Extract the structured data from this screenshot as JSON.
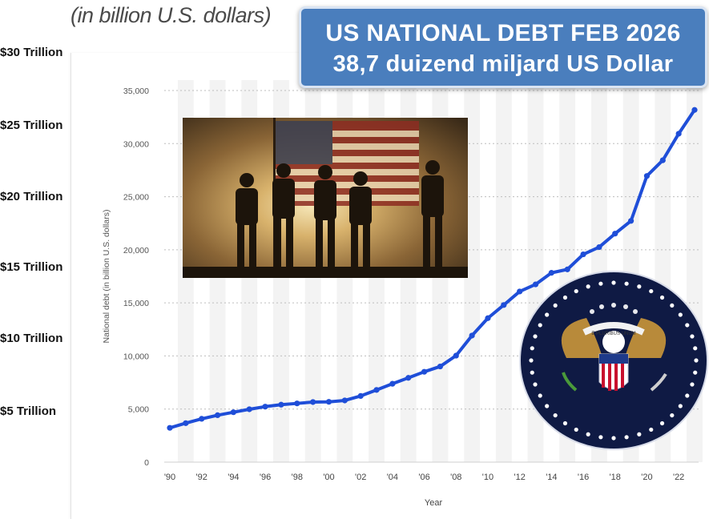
{
  "subtitle": "(in billion U.S. dollars)",
  "banner": {
    "line1": "US NATIONAL DEBT FEB 2026",
    "line2": "38,7 duizend miljard US Dollar"
  },
  "trillion_labels": [
    "$30 Trillion",
    "$25 Trillion",
    "$20 Trillion",
    "$15 Trillion",
    "$10 Trillion",
    "$5 Trillion"
  ],
  "seal_motto": "E PLURIBUS UNUM",
  "colors": {
    "line": "#1f4ed8",
    "banner": "#4a7ebd",
    "grid_band": "#f3f3f3"
  },
  "chart_data": {
    "type": "line",
    "xlabel": "Year",
    "ylabel": "National debt (in billion U.S. dollars)",
    "ylim": [
      0,
      35000
    ],
    "yticks": [
      0,
      5000,
      10000,
      15000,
      20000,
      25000,
      30000,
      35000
    ],
    "ytick_labels": [
      "0",
      "5,000",
      "10,000",
      "15,000",
      "20,000",
      "25,000",
      "30,000",
      "35,000"
    ],
    "xtick_labels": [
      "'90",
      "'92",
      "'94",
      "'96",
      "'98",
      "'00",
      "'02",
      "'04",
      "'06",
      "'08",
      "'10",
      "'12",
      "'14",
      "'16",
      "'18",
      "'20",
      "'22"
    ],
    "grid": "alternating vertical bands",
    "x": [
      1990,
      1991,
      1992,
      1993,
      1994,
      1995,
      1996,
      1997,
      1998,
      1999,
      2000,
      2001,
      2002,
      2003,
      2004,
      2005,
      2006,
      2007,
      2008,
      2009,
      2010,
      2011,
      2012,
      2013,
      2014,
      2015,
      2016,
      2017,
      2018,
      2019,
      2020,
      2021,
      2022,
      2023
    ],
    "y": [
      3230,
      3670,
      4080,
      4420,
      4700,
      4980,
      5230,
      5410,
      5530,
      5660,
      5680,
      5810,
      6230,
      6800,
      7380,
      7940,
      8510,
      9010,
      10030,
      11920,
      13560,
      14800,
      16070,
      16740,
      17830,
      18150,
      19570,
      20250,
      21520,
      22720,
      26950,
      28430,
      30930,
      33170
    ]
  }
}
